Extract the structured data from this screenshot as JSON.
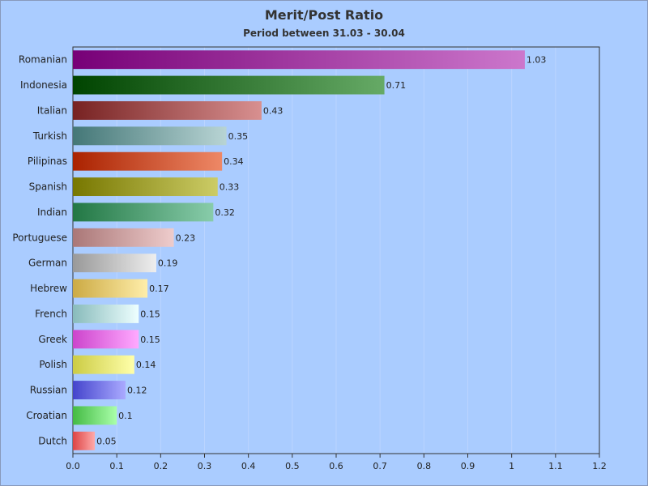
{
  "chart_data": {
    "type": "bar",
    "orientation": "horizontal",
    "title": "Merit/Post Ratio",
    "subtitle": "Period between 31.03 - 30.04",
    "xlabel": "",
    "ylabel": "",
    "xlim": [
      0.0,
      1.2
    ],
    "grid": true,
    "legend": "none",
    "ticks": [
      "0.0",
      "0.1",
      "0.2",
      "0.3",
      "0.4",
      "0.5",
      "0.6",
      "0.7",
      "0.8",
      "0.9",
      "1",
      "1.1",
      "1.2"
    ],
    "tick_values": [
      0.0,
      0.1,
      0.2,
      0.3,
      0.4,
      0.5,
      0.6,
      0.7,
      0.8,
      0.9,
      1.0,
      1.1,
      1.2
    ],
    "categories": [
      "Romanian",
      "Indonesia",
      "Italian",
      "Turkish",
      "Pilipinas",
      "Spanish",
      "Indian",
      "Portuguese",
      "German",
      "Hebrew",
      "French",
      "Greek",
      "Polish",
      "Russian",
      "Croatian",
      "Dutch"
    ],
    "values": [
      1.03,
      0.71,
      0.43,
      0.35,
      0.34,
      0.33,
      0.32,
      0.23,
      0.19,
      0.17,
      0.15,
      0.15,
      0.14,
      0.12,
      0.1,
      0.05
    ],
    "value_labels": [
      "1.03",
      "0.71",
      "0.43",
      "0.35",
      "0.34",
      "0.33",
      "0.32",
      "0.23",
      "0.19",
      "0.17",
      "0.15",
      "0.15",
      "0.14",
      "0.12",
      "0.1",
      "0.05"
    ],
    "colors": [
      [
        "#770077",
        "#cc77cc"
      ],
      [
        "#004400",
        "#66aa66"
      ],
      [
        "#772222",
        "#d89090"
      ],
      [
        "#447777",
        "#b8d4d4"
      ],
      [
        "#aa2200",
        "#ee8866"
      ],
      [
        "#777700",
        "#cccc66"
      ],
      [
        "#227744",
        "#88ccaa"
      ],
      [
        "#aa7777",
        "#eecccc"
      ],
      [
        "#999999",
        "#eeeeee"
      ],
      [
        "#ccaa44",
        "#ffeeaa"
      ],
      [
        "#88bbbb",
        "#eeffff"
      ],
      [
        "#cc44cc",
        "#ffaaff"
      ],
      [
        "#cccc44",
        "#ffffaa"
      ],
      [
        "#4444cc",
        "#aaaaff"
      ],
      [
        "#44bb44",
        "#aaffaa"
      ],
      [
        "#dd4444",
        "#ffaaaa"
      ]
    ]
  }
}
